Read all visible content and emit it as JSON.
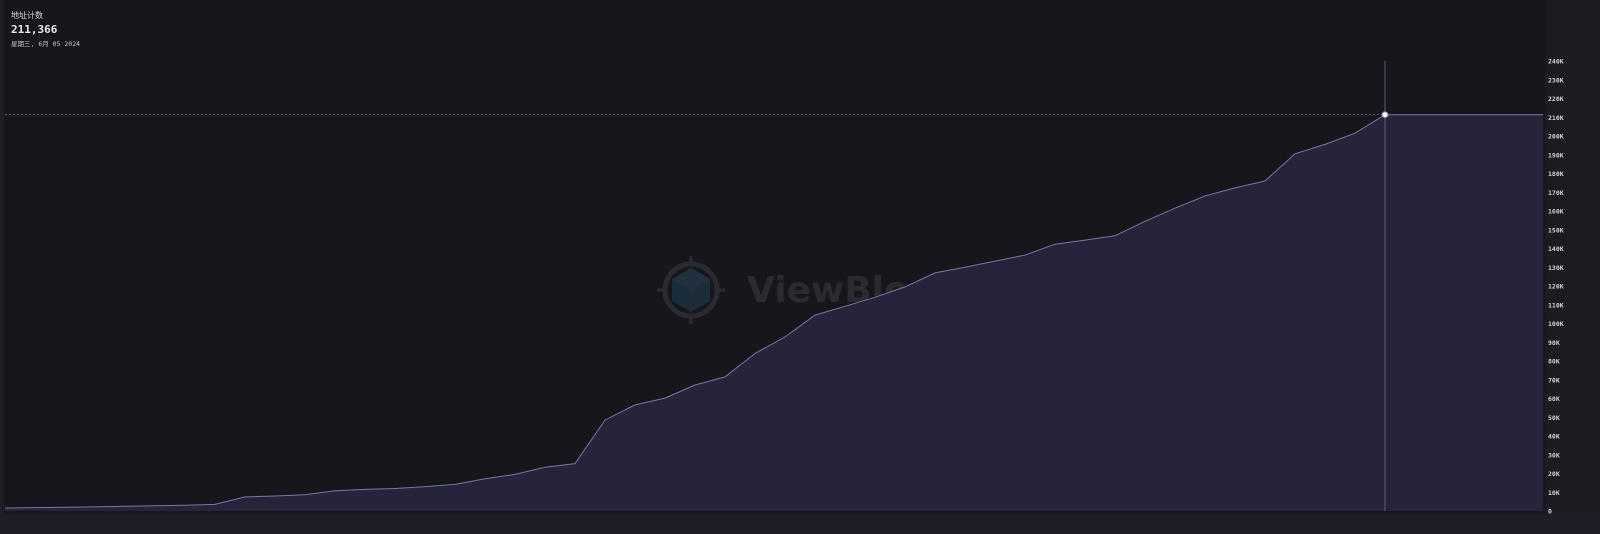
{
  "tooltip": {
    "label": "地址计数",
    "value": "211,366",
    "date": "星期三, 6月 05 2024"
  },
  "watermark": {
    "text": "ViewBlock",
    "icon": "cube-crosshair-logo-icon"
  },
  "colors": {
    "background": "#17161c",
    "area_fill": "#25243a",
    "line": "#7775a8",
    "crosshair": "#6f6e8a",
    "marker": "#ffffff"
  },
  "chart_data": {
    "type": "area",
    "title": "",
    "xlabel": "",
    "ylabel": "",
    "ylim": [
      0,
      240000
    ],
    "y_ticks": [
      "0",
      "10K",
      "20K",
      "30K",
      "40K",
      "50K",
      "60K",
      "70K",
      "80K",
      "90K",
      "100K",
      "110K",
      "120K",
      "130K",
      "140K",
      "150K",
      "160K",
      "170K",
      "180K",
      "190K",
      "200K",
      "210K",
      "220K",
      "230K",
      "240K"
    ],
    "y_axis_position": "right",
    "grid": false,
    "x_ticks_visible": false,
    "hover_index": 46,
    "values": [
      1600,
      1800,
      2000,
      2200,
      2500,
      2800,
      3100,
      3500,
      7500,
      8000,
      8700,
      10800,
      11500,
      12000,
      13000,
      14200,
      17200,
      19500,
      23300,
      25300,
      48500,
      56600,
      60200,
      67200,
      71500,
      84000,
      92800,
      104500,
      109200,
      114000,
      119500,
      127000,
      130000,
      133300,
      136500,
      142300,
      144500,
      146800,
      154500,
      161500,
      168000,
      172300,
      176000,
      190500,
      195500,
      201500,
      211366
    ]
  }
}
